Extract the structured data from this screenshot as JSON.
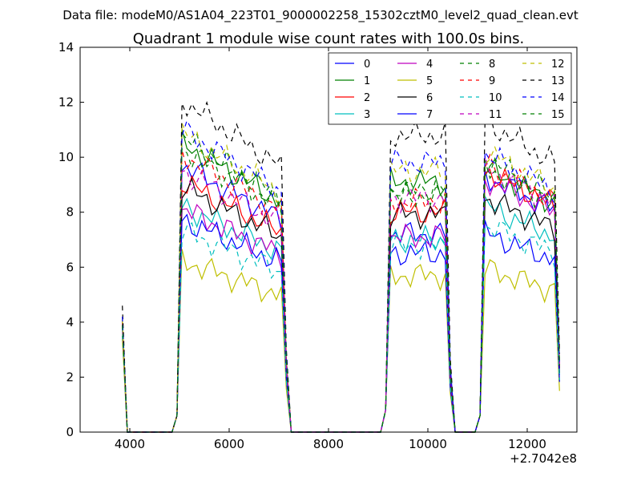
{
  "chart_data": {
    "type": "line",
    "suptitle": "Data file: modeM0/AS1A04_223T01_9000002258_15302cztM0_level2_quad_clean.evt",
    "title": "Quadrant 1 module wise count rates with 100.0s bins.",
    "xlabel": "",
    "ylabel": "",
    "x_offset_label": "+2.7042e8",
    "xlim": [
      3000,
      13000
    ],
    "ylim": [
      0,
      14
    ],
    "x_ticks": [
      4000,
      6000,
      8000,
      10000,
      12000
    ],
    "x_tick_labels": [
      "4000",
      "6000",
      "8000",
      "10000",
      "12000"
    ],
    "y_ticks": [
      0,
      2,
      4,
      6,
      8,
      10,
      12,
      14
    ],
    "y_tick_labels": [
      "0",
      "2",
      "4",
      "6",
      "8",
      "10",
      "12",
      "14"
    ],
    "legend_position": "top-right",
    "legend_columns": 4,
    "segments": [
      {
        "start": 3850,
        "end": 4050
      },
      {
        "start": 4950,
        "end": 7150
      },
      {
        "start": 9150,
        "end": 10450
      },
      {
        "start": 11050,
        "end": 12650
      }
    ],
    "x": [
      3850,
      3950,
      4050,
      4150,
      4250,
      4350,
      4450,
      4550,
      4650,
      4750,
      4850,
      4950,
      5050,
      5150,
      5250,
      5350,
      5450,
      5550,
      5650,
      5750,
      5850,
      5950,
      6050,
      6150,
      6250,
      6350,
      6450,
      6550,
      6650,
      6750,
      6850,
      6950,
      7050,
      7150,
      7250,
      7350,
      7450,
      7550,
      7650,
      7750,
      7850,
      7950,
      8050,
      8150,
      8250,
      8350,
      8450,
      8550,
      8650,
      8750,
      8850,
      8950,
      9050,
      9150,
      9250,
      9350,
      9450,
      9550,
      9650,
      9750,
      9850,
      9950,
      10050,
      10150,
      10250,
      10350,
      10450,
      10550,
      10650,
      10750,
      10850,
      10950,
      11050,
      11150,
      11250,
      11350,
      11450,
      11550,
      11650,
      11750,
      11850,
      11950,
      12050,
      12150,
      12250,
      12350,
      12450,
      12550,
      12650
    ],
    "series": [
      {
        "name": "0",
        "color": "#0000ff",
        "style": "solid",
        "levels": [
          4.0,
          9.8,
          7.2,
          9.4,
          7.6
        ]
      },
      {
        "name": "1",
        "color": "#008000",
        "style": "solid",
        "levels": [
          4.0,
          10.6,
          9.1,
          9.7,
          9.0
        ]
      },
      {
        "name": "2",
        "color": "#ff0000",
        "style": "solid",
        "levels": [
          3.9,
          9.2,
          8.0,
          9.6,
          8.2
        ]
      },
      {
        "name": "3",
        "color": "#00bfbf",
        "style": "solid",
        "levels": [
          3.5,
          8.3,
          7.0,
          8.3,
          7.0
        ]
      },
      {
        "name": "4",
        "color": "#bf00bf",
        "style": "solid",
        "levels": [
          3.9,
          8.2,
          7.1,
          9.3,
          7.2
        ]
      },
      {
        "name": "5",
        "color": "#bfbf00",
        "style": "solid",
        "levels": [
          3.4,
          6.3,
          5.7,
          6.0,
          5.8
        ]
      },
      {
        "name": "6",
        "color": "#000000",
        "style": "solid",
        "levels": [
          4.0,
          9.0,
          7.9,
          8.6,
          7.8
        ]
      },
      {
        "name": "7",
        "color": "#0000ff",
        "style": "solid",
        "levels": [
          3.8,
          7.8,
          6.5,
          7.3,
          6.5
        ]
      },
      {
        "name": "8",
        "color": "#008000",
        "style": "dashed",
        "levels": [
          4.1,
          10.8,
          8.6,
          10.0,
          8.8
        ]
      },
      {
        "name": "9",
        "color": "#ff0000",
        "style": "dashed",
        "levels": [
          4.0,
          10.2,
          8.4,
          9.8,
          8.6
        ]
      },
      {
        "name": "10",
        "color": "#00bfbf",
        "style": "dashed",
        "levels": [
          3.8,
          7.4,
          6.8,
          7.6,
          6.8
        ]
      },
      {
        "name": "11",
        "color": "#bf00bf",
        "style": "dashed",
        "levels": [
          4.0,
          9.6,
          8.5,
          9.7,
          8.5
        ]
      },
      {
        "name": "12",
        "color": "#bfbf00",
        "style": "dashed",
        "levels": [
          4.1,
          11.0,
          9.5,
          10.3,
          9.6
        ]
      },
      {
        "name": "13",
        "color": "#000000",
        "style": "dashed",
        "levels": [
          4.6,
          12.2,
          10.8,
          11.4,
          10.3
        ]
      },
      {
        "name": "14",
        "color": "#0000ff",
        "style": "dashed",
        "levels": [
          4.2,
          11.1,
          9.8,
          10.2,
          9.9
        ]
      },
      {
        "name": "15",
        "color": "#008000",
        "style": "dashed",
        "levels": [
          3.9,
          10.4,
          8.8,
          9.7,
          8.5
        ]
      }
    ]
  }
}
